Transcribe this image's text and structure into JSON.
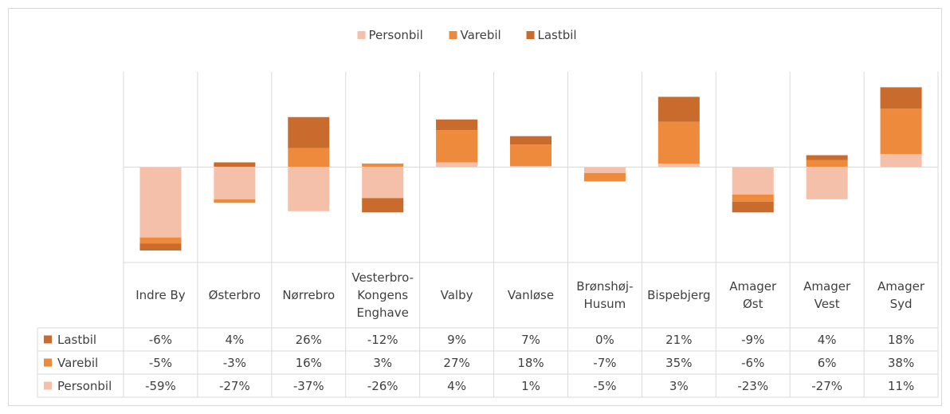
{
  "chart_data": {
    "type": "bar",
    "stacked": true,
    "legend": "top",
    "categories": [
      "Indre By",
      "Østerbro",
      "Nørrebro",
      "Vesterbro-Kongens Enghave",
      "Valby",
      "Vanløse",
      "Brønshøj-Husum",
      "Bispebjerg",
      "Amager Øst",
      "Amager Vest",
      "Amager Syd"
    ],
    "ylim": [
      -80,
      80
    ],
    "series": [
      {
        "name": "Personbil",
        "color": "#f5c0aa",
        "values": [
          -59,
          -27,
          -37,
          -26,
          4,
          1,
          -5,
          3,
          -23,
          -27,
          11
        ],
        "value_labels": [
          "-59%",
          "-27%",
          "-37%",
          "-26%",
          "4%",
          "1%",
          "-5%",
          "3%",
          "-23%",
          "-27%",
          "11%"
        ]
      },
      {
        "name": "Varebil",
        "color": "#ee8a3c",
        "values": [
          -5,
          -3,
          16,
          3,
          27,
          18,
          -7,
          35,
          -6,
          6,
          38
        ],
        "value_labels": [
          "-5%",
          "-3%",
          "16%",
          "3%",
          "27%",
          "18%",
          "-7%",
          "35%",
          "-6%",
          "6%",
          "38%"
        ]
      },
      {
        "name": "Lastbil",
        "color": "#c96b2c",
        "values": [
          -6,
          4,
          26,
          -12,
          9,
          7,
          0,
          21,
          -9,
          4,
          18
        ],
        "value_labels": [
          "-6%",
          "4%",
          "26%",
          "-12%",
          "9%",
          "7%",
          "0%",
          "21%",
          "-9%",
          "4%",
          "18%"
        ]
      }
    ]
  }
}
